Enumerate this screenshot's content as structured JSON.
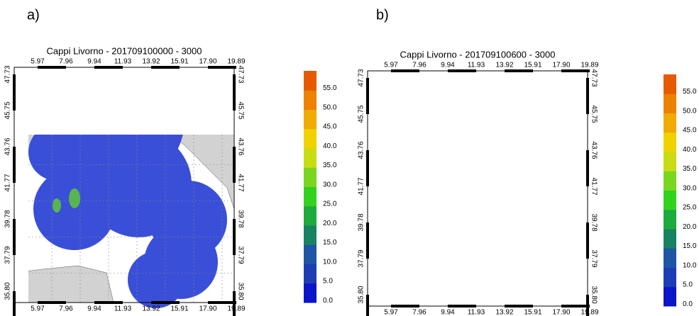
{
  "panels": [
    {
      "label": "a)",
      "title": "Cappi Livorno - 201709100000 - 3000",
      "x_ticks": [
        "5.97",
        "7.96",
        "9.94",
        "11.93",
        "13.92",
        "15.91",
        "17.90",
        "19.89"
      ],
      "y_ticks": [
        "47.73",
        "45.75",
        "43.76",
        "41.77",
        "39.78",
        "37.79",
        "35.80"
      ],
      "colorbar": {
        "ticks": [
          "0.0",
          "5.0",
          "10.0",
          "15.0",
          "20.0",
          "25.0",
          "30.0",
          "35.0",
          "40.0",
          "45.0",
          "50.0",
          "55.0"
        ],
        "colors": [
          "#0a14c8",
          "#1e3cb4",
          "#1e55a5",
          "#198264",
          "#1eaa3c",
          "#32d21e",
          "#7ad61e",
          "#c8dc14",
          "#f0d200",
          "#f0aa00",
          "#ec8200",
          "#e65a00"
        ]
      }
    },
    {
      "label": "b)",
      "title": "Cappi Livorno - 201709100600 - 3000",
      "x_ticks": [
        "5.97",
        "7.96",
        "9.94",
        "11.93",
        "13.92",
        "15.91",
        "17.90",
        "19.89"
      ],
      "y_ticks": [
        "47.73",
        "45.75",
        "43.76",
        "41.77",
        "39.78",
        "37.79",
        "35.80"
      ],
      "colorbar": {
        "ticks": [
          "0.0",
          "5.0",
          "10.0",
          "15.0",
          "20.0",
          "25.0",
          "30.0",
          "35.0",
          "40.0",
          "45.0",
          "50.0",
          "55.0"
        ],
        "colors": [
          "#0a14c8",
          "#1e3cb4",
          "#1e55a5",
          "#198264",
          "#1eaa3c",
          "#32d21e",
          "#7ad61e",
          "#c8dc14",
          "#f0d200",
          "#f0aa00",
          "#ec8200",
          "#e65a00"
        ]
      }
    }
  ]
}
